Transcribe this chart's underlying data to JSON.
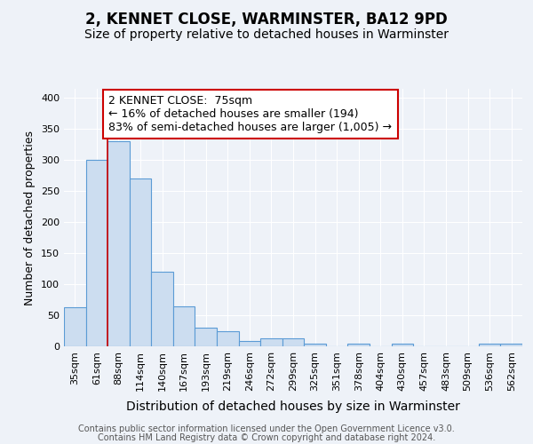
{
  "title1": "2, KENNET CLOSE, WARMINSTER, BA12 9PD",
  "title2": "Size of property relative to detached houses in Warminster",
  "xlabel": "Distribution of detached houses by size in Warminster",
  "ylabel": "Number of detached properties",
  "categories": [
    "35sqm",
    "61sqm",
    "88sqm",
    "114sqm",
    "140sqm",
    "167sqm",
    "193sqm",
    "219sqm",
    "246sqm",
    "272sqm",
    "299sqm",
    "325sqm",
    "351sqm",
    "378sqm",
    "404sqm",
    "430sqm",
    "457sqm",
    "483sqm",
    "509sqm",
    "536sqm",
    "562sqm"
  ],
  "values": [
    63,
    300,
    330,
    270,
    120,
    65,
    30,
    25,
    8,
    13,
    13,
    5,
    0,
    5,
    0,
    4,
    0,
    0,
    0,
    4,
    4
  ],
  "bar_color": "#ccddf0",
  "bar_edge_color": "#5b9bd5",
  "bar_width": 1.0,
  "red_line_x": 1.5,
  "annotation_line1": "2 KENNET CLOSE:  75sqm",
  "annotation_line2": "← 16% of detached houses are smaller (194)",
  "annotation_line3": "83% of semi-detached houses are larger (1,005) →",
  "annotation_box_color": "#ffffff",
  "annotation_box_edge_color": "#cc0000",
  "ylim": [
    0,
    415
  ],
  "yticks": [
    0,
    50,
    100,
    150,
    200,
    250,
    300,
    350,
    400
  ],
  "background_color": "#eef2f8",
  "grid_color": "#ffffff",
  "footer_line1": "Contains HM Land Registry data © Crown copyright and database right 2024.",
  "footer_line2": "Contains public sector information licensed under the Open Government Licence v3.0.",
  "title1_fontsize": 12,
  "title2_fontsize": 10,
  "xlabel_fontsize": 10,
  "ylabel_fontsize": 9,
  "tick_fontsize": 8,
  "annotation_fontsize": 9,
  "footer_fontsize": 7
}
